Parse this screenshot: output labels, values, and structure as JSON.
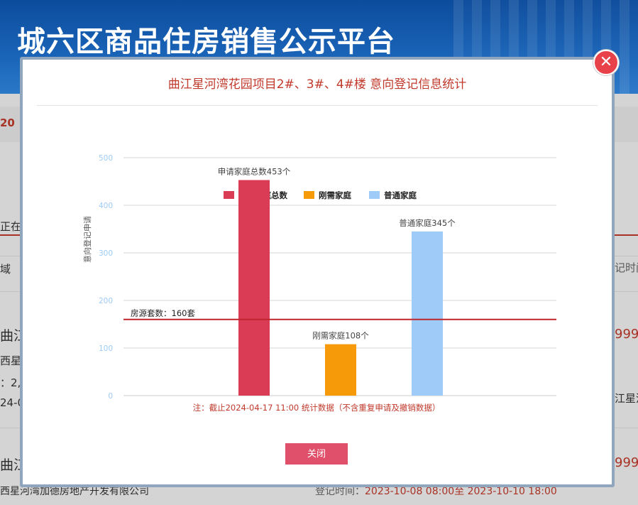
{
  "background": {
    "site_title": "城六区商品住房销售公示平台",
    "frag_left_1": "20",
    "frag_left_2": "正在",
    "frag_left_3": "域",
    "frag_left_4": "曲江",
    "frag_left_5": "西星",
    "frag_left_6": "：2,",
    "frag_left_7": "24-0",
    "frag_left_8": "曲江",
    "frag_bottom_company": "西星河湾加德房地产开发有限公司",
    "frag_bottom_time_label": "登记时间：",
    "frag_bottom_time_value": "2023-10-08 08:00至 2023-10-10 18:00",
    "frag_right_1": "记时间",
    "frag_right_2": "999",
    "frag_right_3": "江星河",
    "frag_right_4": "999"
  },
  "modal": {
    "title": "曲江星河湾花园项目2#、3#、4#楼 意向登记信息统计",
    "close_icon_glyph": "✕",
    "close_button_label": "关闭"
  },
  "chart_data": {
    "type": "bar",
    "categories": [
      "申请家庭总数",
      "刚需家庭",
      "普通家庭"
    ],
    "values": [
      453,
      108,
      345
    ],
    "colors": [
      "#d93c54",
      "#f79a0a",
      "#9ecbf7"
    ],
    "legend": [
      "申请家庭总数",
      "刚需家庭",
      "普通家庭"
    ],
    "legend_position": "top",
    "bar_labels": [
      "申请家庭总数453个",
      "刚需家庭108个",
      "普通家庭345个"
    ],
    "ylabel": "意向登记申请",
    "ylim": [
      0,
      500
    ],
    "yticks": [
      0,
      100,
      200,
      300,
      400,
      500
    ],
    "grid": true,
    "reference_line": {
      "value": 160,
      "label": "房源套数：160套",
      "color": "#c0262e"
    },
    "note": "注：截止2024-04-17 11:00 统计数据（不含重复申请及撤销数据）"
  }
}
